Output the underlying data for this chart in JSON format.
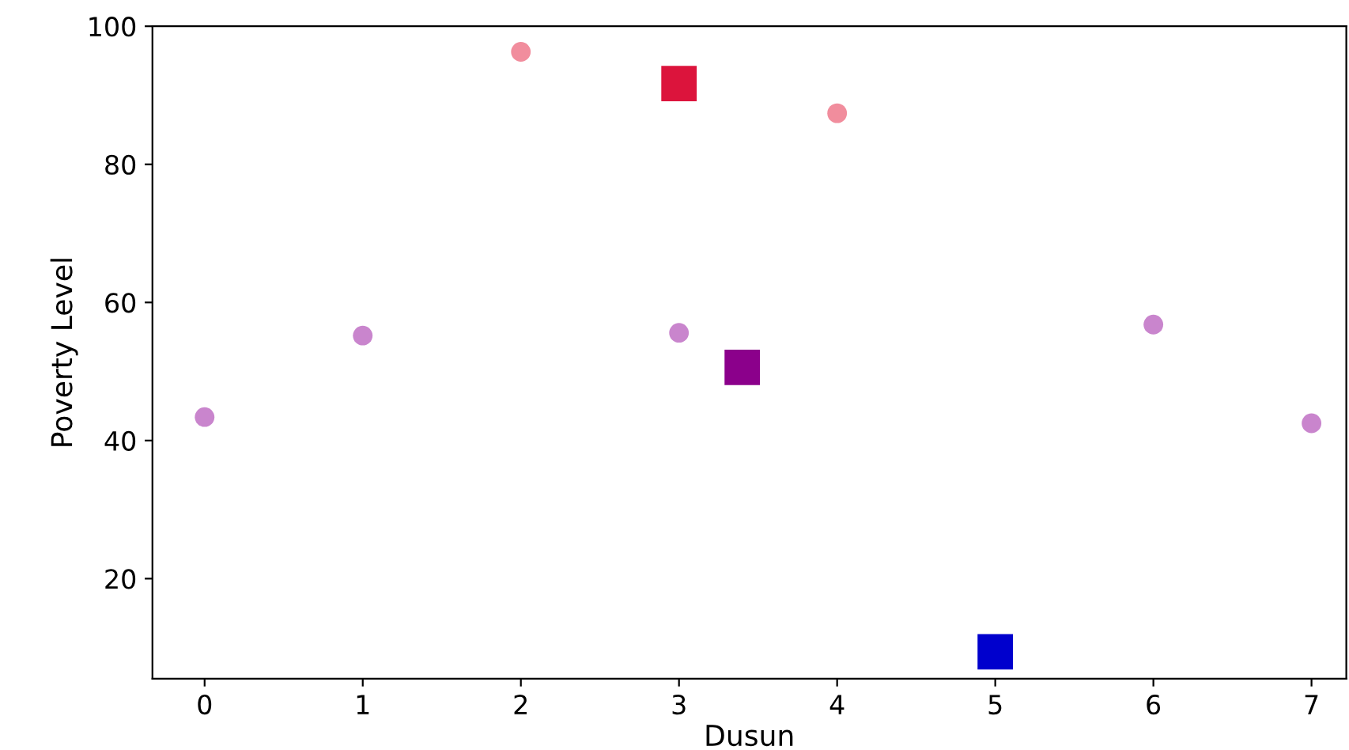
{
  "chart_data": {
    "type": "scatter",
    "xlabel": "Dusun",
    "ylabel": "Poverty Level",
    "xlim": [
      -0.33,
      7.22
    ],
    "ylim": [
      5.5,
      100
    ],
    "xticks": [
      0,
      1,
      2,
      3,
      4,
      5,
      6,
      7
    ],
    "yticks": [
      20,
      40,
      60,
      80,
      100
    ],
    "grid": false,
    "legend": false,
    "series": [
      {
        "color": "#bb66c0",
        "marker": "circle",
        "x": [
          0,
          1,
          3,
          6,
          7
        ],
        "values": [
          43.4,
          55.2,
          55.6,
          56.8,
          42.5
        ]
      },
      {
        "color": "#ee7085",
        "marker": "circle",
        "x": [
          2,
          4
        ],
        "values": [
          96.3,
          87.4
        ]
      },
      {
        "color": "#dc143c",
        "marker": "square",
        "x": [
          3
        ],
        "values": [
          91.7
        ]
      },
      {
        "color": "#8b008b",
        "marker": "square",
        "x": [
          3.4
        ],
        "values": [
          50.6
        ]
      },
      {
        "color": "#0000cd",
        "marker": "square",
        "x": [
          5
        ],
        "values": [
          9.4
        ]
      }
    ]
  }
}
